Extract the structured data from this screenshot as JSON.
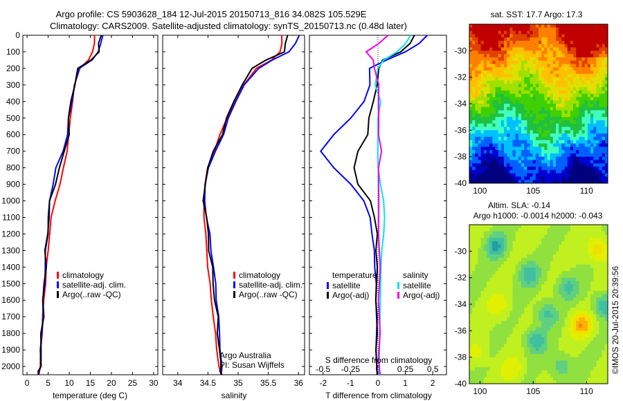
{
  "header": {
    "line1": "Argo profile: CS 5903628_184 12-Jul-2015 20150713_816 34.082S 105.529E",
    "line2": "Climatology: CARS2009. Satellite-adjusted climatology: synTS_20150713.nc (0.48d later)"
  },
  "side_text": "©IMOS 20-Jul-2015 20:39:56",
  "colors": {
    "climatology": "#ff0000",
    "satellite": "#0000ff",
    "argo": "#000000",
    "sal_satellite": "#00e5ee",
    "sal_argo": "#ee00ee"
  },
  "chart_data": [
    {
      "type": "line",
      "name": "temperature-profile",
      "xlabel": "temperature (deg C)",
      "xlim": [
        -1,
        31
      ],
      "ylim": [
        0,
        2050
      ],
      "y_reversed": true,
      "xticks": [
        0,
        5,
        10,
        15,
        20,
        25,
        30
      ],
      "yticks": [
        0,
        100,
        200,
        300,
        400,
        500,
        600,
        700,
        800,
        900,
        1000,
        1100,
        1200,
        1300,
        1400,
        1500,
        1600,
        1700,
        1800,
        1900,
        2000
      ],
      "legend": {
        "items": [
          {
            "label": "climatology",
            "color": "#ff0000"
          },
          {
            "label": "satellite-adj. clim.",
            "color": "#0000ff"
          },
          {
            "label": "Argo(..raw -QC)",
            "color": "#000000"
          }
        ]
      },
      "series": [
        {
          "name": "climatology",
          "color": "#ff0000",
          "x": [
            16.0,
            15.9,
            15.6,
            14.5,
            12.5,
            11.3,
            10.7,
            10.3,
            9.9,
            9.4,
            8.7,
            7.8,
            6.6,
            5.8,
            5.3,
            5.0,
            4.6,
            4.3,
            4.0,
            3.7,
            3.5,
            3.3,
            3.1,
            2.9,
            2.7,
            2.5
          ],
          "y": [
            0,
            50,
            100,
            150,
            200,
            300,
            400,
            500,
            600,
            700,
            800,
            900,
            1000,
            1100,
            1200,
            1300,
            1400,
            1500,
            1600,
            1700,
            1800,
            1900,
            2000,
            2030,
            2040,
            2050
          ]
        },
        {
          "name": "satellite-adj. clim.",
          "color": "#0000ff",
          "x": [
            17.8,
            17.5,
            17.0,
            15.2,
            12.5,
            11.3,
            10.5,
            10.0,
            9.5,
            8.5,
            7.0,
            6.0,
            5.4,
            5.1,
            4.8,
            4.5,
            4.3,
            4.1,
            3.9,
            3.7,
            3.5,
            3.3,
            3.1,
            2.9,
            2.7,
            2.6
          ],
          "y": [
            0,
            50,
            100,
            150,
            200,
            300,
            400,
            500,
            600,
            700,
            800,
            900,
            1000,
            1100,
            1200,
            1300,
            1400,
            1500,
            1600,
            1700,
            1800,
            1900,
            2000,
            2030,
            2040,
            2050
          ]
        },
        {
          "name": "Argo(..raw -QC)",
          "color": "#000000",
          "x": [
            17.3,
            17.2,
            17.0,
            15.0,
            12.3,
            11.1,
            10.4,
            10.0,
            9.7,
            9.0,
            7.7,
            6.5,
            5.6,
            5.1,
            4.8,
            4.5,
            4.3,
            4.1,
            3.9,
            3.7,
            3.5,
            3.3,
            3.1,
            2.9,
            2.7,
            2.6
          ],
          "y": [
            0,
            50,
            100,
            150,
            200,
            300,
            400,
            500,
            600,
            700,
            800,
            900,
            1000,
            1100,
            1200,
            1300,
            1400,
            1500,
            1600,
            1700,
            1800,
            1900,
            2000,
            2030,
            2040,
            2050
          ]
        }
      ]
    },
    {
      "type": "line",
      "name": "salinity-profile",
      "xlabel": "salinity",
      "xlim": [
        33.75,
        36.1
      ],
      "ylim": [
        0,
        2050
      ],
      "y_reversed": true,
      "xticks": [
        34,
        34.5,
        35,
        35.5,
        36
      ],
      "legend": {
        "items": [
          {
            "label": "climatology",
            "color": "#ff0000"
          },
          {
            "label": "satellite-adj. clim.",
            "color": "#0000ff"
          },
          {
            "label": "Argo(..raw -QC)",
            "color": "#000000"
          }
        ]
      },
      "annotations": [
        "Argo Australia",
        "PI: Susan Wijffels"
      ],
      "series": [
        {
          "name": "climatology",
          "color": "#ff0000",
          "x": [
            35.72,
            35.72,
            35.7,
            35.55,
            35.3,
            35.1,
            34.95,
            34.82,
            34.7,
            34.6,
            34.5,
            34.45,
            34.43,
            34.44,
            34.46,
            34.48,
            34.5,
            34.53,
            34.56,
            34.59,
            34.62,
            34.65,
            34.68,
            34.7,
            34.72
          ],
          "y": [
            0,
            50,
            100,
            150,
            200,
            300,
            400,
            500,
            600,
            700,
            800,
            900,
            1000,
            1100,
            1200,
            1300,
            1400,
            1500,
            1600,
            1700,
            1800,
            1900,
            2000,
            2030,
            2050
          ]
        },
        {
          "name": "satellite-adj. clim.",
          "color": "#0000ff",
          "x": [
            36.0,
            35.95,
            35.85,
            35.55,
            35.35,
            35.1,
            34.95,
            34.85,
            34.75,
            34.62,
            34.52,
            34.44,
            34.45,
            34.48,
            34.52,
            34.56,
            34.59,
            34.62,
            34.65,
            34.67,
            34.69,
            34.71,
            34.72,
            34.73,
            34.73
          ],
          "y": [
            0,
            50,
            100,
            150,
            200,
            300,
            400,
            500,
            600,
            700,
            800,
            900,
            1000,
            1100,
            1200,
            1300,
            1400,
            1500,
            1600,
            1700,
            1800,
            1900,
            2000,
            2030,
            2050
          ]
        },
        {
          "name": "Argo(..raw -QC)",
          "color": "#000000",
          "x": [
            35.8,
            35.8,
            35.76,
            35.45,
            35.25,
            35.05,
            34.93,
            34.82,
            34.72,
            34.6,
            34.5,
            34.44,
            34.44,
            34.47,
            34.5,
            34.53,
            34.56,
            34.59,
            34.62,
            34.65,
            34.67,
            34.69,
            34.71,
            34.72,
            34.72
          ],
          "y": [
            0,
            50,
            100,
            150,
            200,
            300,
            400,
            500,
            600,
            700,
            800,
            900,
            1000,
            1100,
            1200,
            1300,
            1400,
            1500,
            1600,
            1700,
            1800,
            1900,
            2000,
            2030,
            2050
          ]
        }
      ]
    },
    {
      "type": "line",
      "name": "difference-profile",
      "xlabel": "T difference from climatology",
      "xlabel_top": "S difference from climatology",
      "xlim": [
        -2.5,
        2.5
      ],
      "ylim": [
        0,
        2050
      ],
      "y_reversed": true,
      "xticks": [
        -2,
        -1,
        0,
        1,
        2
      ],
      "xticks_top": [
        "-0.5",
        "-0.25",
        "0",
        "0.25",
        "0.5"
      ],
      "legend": {
        "temperature_title": "temperature",
        "salinity_title": "salinity",
        "items": [
          {
            "label": "satellite",
            "color": "#0000ff"
          },
          {
            "label": "Argo(-adj)",
            "color": "#000000"
          },
          {
            "label": "satellite",
            "color": "#00e5ee"
          },
          {
            "label": "Argo(-adj)",
            "color": "#ee00ee"
          }
        ]
      },
      "series": [
        {
          "name": "T satellite",
          "color": "#0000ff",
          "x": [
            1.8,
            1.5,
            1.0,
            0.3,
            -0.3,
            -0.3,
            -0.5,
            -1.0,
            -1.6,
            -2.1,
            -1.6,
            -1.0,
            -0.5,
            -0.3,
            -0.2,
            -0.15,
            -0.1,
            -0.08,
            -0.06,
            -0.05,
            -0.05,
            -0.05
          ],
          "y": [
            0,
            50,
            100,
            150,
            200,
            300,
            400,
            500,
            600,
            700,
            800,
            900,
            1000,
            1100,
            1200,
            1300,
            1400,
            1500,
            1600,
            1700,
            1900,
            2050
          ]
        },
        {
          "name": "T Argo(-adj)",
          "color": "#000000",
          "x": [
            1.3,
            1.2,
            0.8,
            0.2,
            0.0,
            0.0,
            -0.2,
            -0.3,
            -0.4,
            -0.7,
            -0.9,
            -0.7,
            -0.3,
            -0.1,
            -0.05,
            -0.05,
            -0.05,
            -0.05,
            -0.05,
            -0.05,
            -0.05
          ],
          "y": [
            0,
            50,
            100,
            150,
            200,
            300,
            400,
            500,
            600,
            700,
            800,
            900,
            1000,
            1100,
            1200,
            1300,
            1400,
            1600,
            1800,
            1900,
            2050
          ]
        },
        {
          "name": "S satellite",
          "color": "#00e5ee",
          "x": [
            1.2,
            1.0,
            0.7,
            0.2,
            0.0,
            -0.1,
            0.1,
            0.0,
            0.0,
            0.0,
            0.0,
            0.1,
            0.2,
            0.25,
            0.2,
            0.15,
            0.1,
            0.1,
            0.05,
            0.05
          ],
          "y": [
            0,
            50,
            100,
            150,
            200,
            300,
            400,
            500,
            600,
            700,
            800,
            900,
            1000,
            1100,
            1200,
            1300,
            1400,
            1600,
            1800,
            2050
          ]
        },
        {
          "name": "S Argo(-adj)",
          "color": "#ee00ee",
          "x": [
            0.4,
            0.0,
            -0.4,
            -0.2,
            -0.1,
            0.0,
            0.05,
            0.0,
            0.05,
            0.1,
            0.05,
            0.0,
            0.05,
            0.05,
            0.05,
            0.05,
            0.05,
            0.05
          ],
          "y": [
            0,
            50,
            100,
            150,
            200,
            300,
            400,
            500,
            600,
            700,
            800,
            1000,
            1200,
            1400,
            1600,
            1800,
            1950,
            2050
          ]
        }
      ]
    },
    {
      "type": "heatmap",
      "name": "sst-map",
      "title": "sat. SST: 17.7  Argo: 17.3",
      "xlim": [
        99,
        112
      ],
      "ylim": [
        -40,
        -28
      ],
      "xticks": [
        100,
        105,
        110
      ],
      "yticks": [
        -30,
        -32,
        -34,
        -36,
        -38,
        -40
      ],
      "palette": [
        "#00007f",
        "#0000d0",
        "#0060ff",
        "#00c0ff",
        "#40ffc0",
        "#20c040",
        "#40d000",
        "#a0e000",
        "#e0e000",
        "#ffc000",
        "#ff8000",
        "#e04000",
        "#c00000"
      ]
    },
    {
      "type": "heatmap",
      "name": "sla-map",
      "title": "Altim. SLA: -0.14",
      "subtitle": "Argo h1000: -0.0014  h2000: -0.043",
      "xlim": [
        99,
        112
      ],
      "ylim": [
        -40,
        -28
      ],
      "xticks": [
        100,
        105,
        110
      ],
      "yticks": [
        -30,
        -32,
        -34,
        -36,
        -38,
        -40
      ],
      "palette": [
        "#20a0a0",
        "#40c0a0",
        "#60d080",
        "#90e040",
        "#c0f020",
        "#e0f000",
        "#f0e000",
        "#ffb000",
        "#ff7000"
      ]
    }
  ]
}
